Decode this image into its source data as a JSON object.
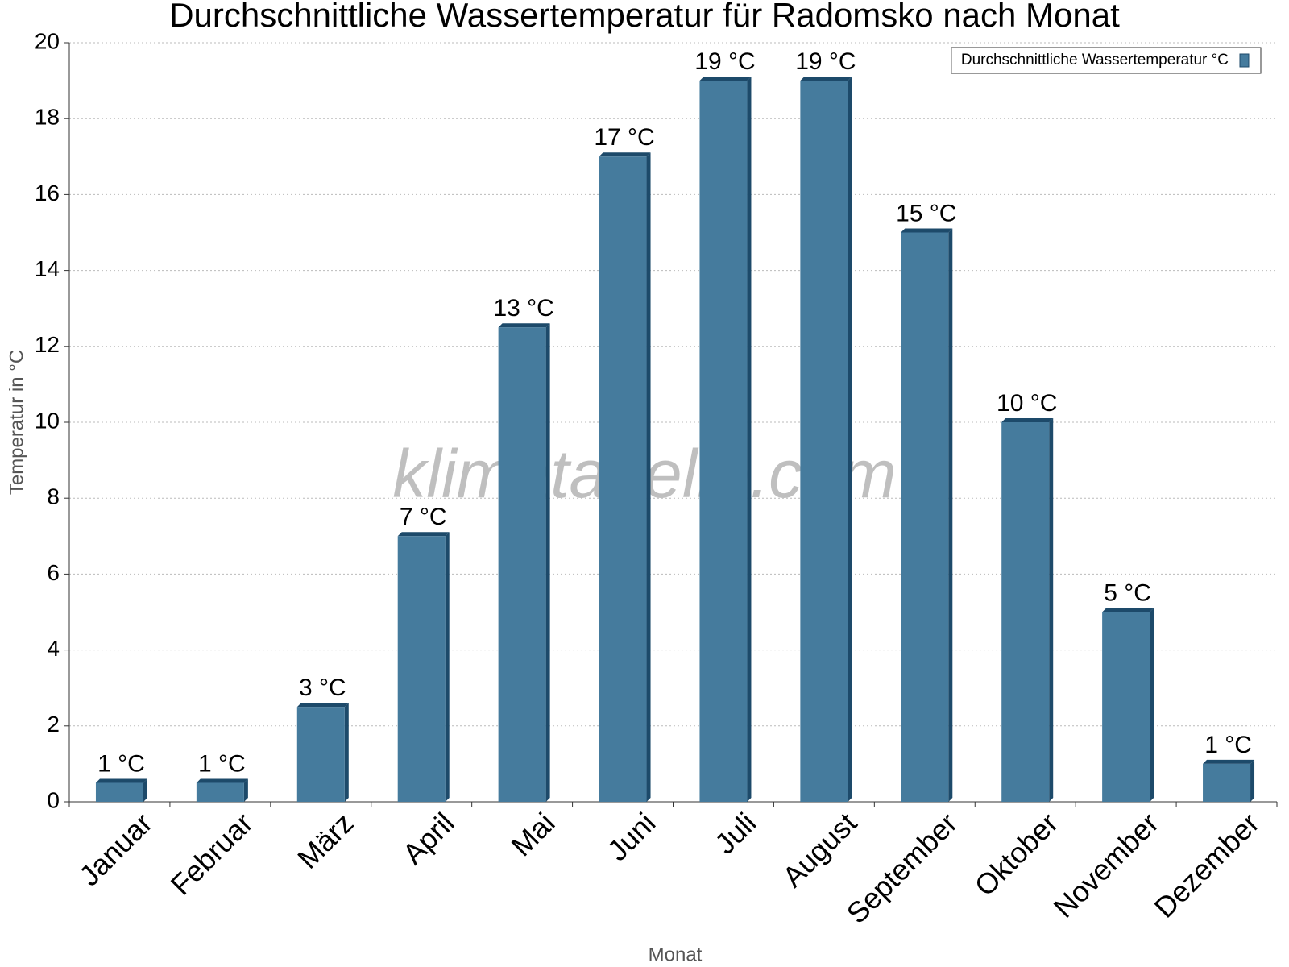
{
  "chart_data": {
    "type": "bar",
    "title": "Durchschnittliche Wassertemperatur für Radomsko nach Monat",
    "watermark": "klimatabelle.com",
    "x_label": "Monat",
    "y_label": "Temperatur in °C",
    "categories": [
      "Januar",
      "Februar",
      "März",
      "April",
      "Mai",
      "Juni",
      "Juli",
      "August",
      "September",
      "Oktober",
      "November",
      "Dezember"
    ],
    "series": [
      {
        "name": "Durchschnittliche Wassertemperatur °C",
        "color": "#457b9d",
        "values": [
          0.5,
          0.5,
          2.5,
          7,
          12.5,
          17,
          19,
          19,
          15,
          10,
          5,
          1
        ],
        "value_labels": [
          "1 °C",
          "1 °C",
          "3 °C",
          "7 °C",
          "13 °C",
          "17 °C",
          "19 °C",
          "19 °C",
          "15 °C",
          "10 °C",
          "5 °C",
          "1 °C"
        ]
      }
    ],
    "ylim": [
      0,
      20
    ],
    "yticks": [
      0,
      2,
      4,
      6,
      8,
      10,
      12,
      14,
      16,
      18,
      20
    ],
    "grid": true,
    "legend": "top-right"
  }
}
